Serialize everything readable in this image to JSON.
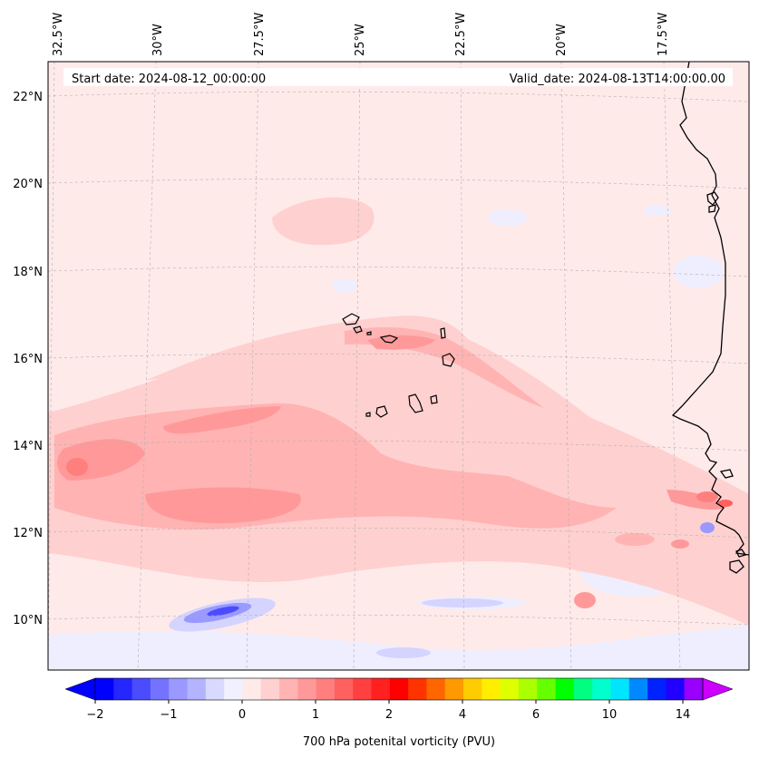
{
  "header": {
    "start_date": "Start date: 2024-08-12_00:00:00",
    "valid_date": "Valid_date: 2024-08-13T14:00:00.00"
  },
  "longitude_labels": [
    "32.5°W",
    "30°W",
    "27.5°W",
    "25°W",
    "22.5°W",
    "20°W",
    "17.5°W"
  ],
  "latitude_labels": [
    "22°N",
    "20°N",
    "18°N",
    "16°N",
    "14°N",
    "12°N",
    "10°N"
  ],
  "colorbar": {
    "label": "700 hPa potenital vorticity (PVU)",
    "ticks": [
      "−2",
      "−1",
      "0",
      "1",
      "2",
      "4",
      "6",
      "10",
      "14"
    ],
    "colors": [
      "#0000ff",
      "#2626ff",
      "#4c4cff",
      "#7373ff",
      "#9999ff",
      "#b3b3ff",
      "#d9d9ff",
      "#f0f0ff",
      "#ffeaea",
      "#ffd0d0",
      "#ffb3b3",
      "#ff9999",
      "#ff7f7f",
      "#ff6060",
      "#ff4040",
      "#ff2020",
      "#ff0000",
      "#ff3300",
      "#ff6600",
      "#ff9900",
      "#ffcc00",
      "#ffee00",
      "#ddff00",
      "#aaff00",
      "#66ff00",
      "#00ff00",
      "#00ff80",
      "#00ffcc",
      "#00e5ff",
      "#0088ff",
      "#0022ff",
      "#2200ff",
      "#9900ff"
    ],
    "under_color": "#0000ff",
    "over_color": "#cc00ff"
  },
  "chart_data": {
    "type": "heatmap",
    "variable": "700 hPa potential vorticity",
    "units": "PVU",
    "lon_range": [
      -33,
      -16
    ],
    "lat_range": [
      9,
      23
    ],
    "colorbar_ticks": [
      -2,
      -1,
      0,
      1,
      2,
      4,
      6,
      10,
      14
    ],
    "features": [
      {
        "name": "Cape Verde islands",
        "lon": -24,
        "lat": 15.9
      },
      {
        "name": "West African coast (Senegal/Mauritania)",
        "lon": -17,
        "lat": 15
      }
    ]
  }
}
